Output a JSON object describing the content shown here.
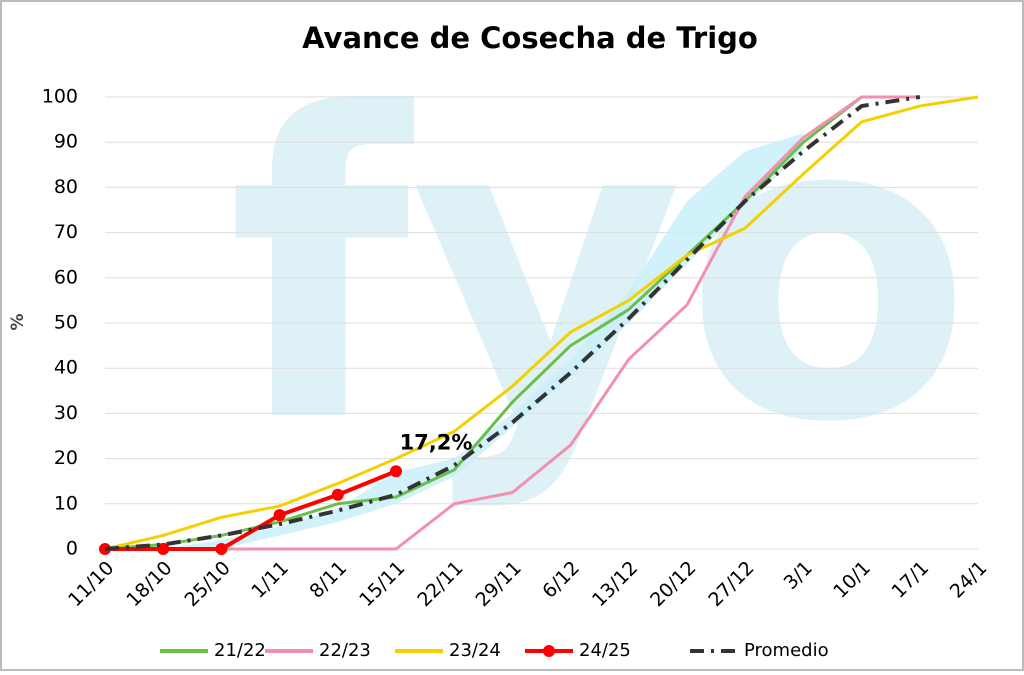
{
  "chart_data": {
    "type": "line",
    "title": "Avance de Cosecha de Trigo",
    "y_label": "%",
    "watermark": "fyo",
    "annotation": {
      "text": "17,2%",
      "series": 3,
      "index": 5
    },
    "categories": [
      "11/10",
      "18/10",
      "25/10",
      "1/11",
      "8/11",
      "15/11",
      "22/11",
      "29/11",
      "6/12",
      "13/12",
      "20/12",
      "27/12",
      "3/1",
      "10/1",
      "17/1",
      "24/1"
    ],
    "band": {
      "color": "#c9eefa",
      "low": [
        0,
        0,
        0,
        3,
        6,
        10,
        16,
        27,
        38,
        50,
        63,
        76,
        88,
        null,
        null,
        null
      ],
      "high": [
        0,
        0,
        2,
        5,
        9,
        17,
        20,
        30,
        42,
        57,
        77,
        88,
        92,
        null,
        null,
        null
      ]
    },
    "series": [
      {
        "name": "21/22",
        "color": "#6abf4b",
        "style": "solid",
        "values": [
          0,
          1,
          3,
          6,
          10,
          11.5,
          17.5,
          32.5,
          45,
          53,
          65,
          77,
          90,
          100,
          100,
          null
        ]
      },
      {
        "name": "22/23",
        "color": "#f48fb1",
        "style": "solid",
        "values": [
          0,
          0,
          0,
          0,
          0,
          0,
          10,
          12.5,
          23,
          42,
          54,
          78,
          91,
          100,
          100,
          null
        ]
      },
      {
        "name": "23/24",
        "color": "#f5d000",
        "style": "solid",
        "values": [
          0,
          3,
          7,
          9.5,
          14.5,
          20,
          26,
          36,
          48,
          55,
          65,
          71,
          83,
          94.5,
          98,
          100
        ]
      },
      {
        "name": "24/25",
        "color": "#ff0000",
        "style": "marker",
        "values": [
          0,
          0,
          0,
          7.5,
          12,
          17.2,
          null,
          null,
          null,
          null,
          null,
          null,
          null,
          null,
          null,
          null
        ]
      },
      {
        "name": "Promedio",
        "color": "#333333",
        "style": "dashdot",
        "values": [
          0,
          1,
          3,
          5.5,
          8.5,
          12,
          18.5,
          28,
          39,
          51,
          64,
          77,
          88,
          98,
          100,
          null
        ]
      }
    ],
    "ylim": [
      0,
      100
    ],
    "yticks": [
      0,
      10,
      20,
      30,
      40,
      50,
      60,
      70,
      80,
      90,
      100
    ],
    "grid": true
  }
}
